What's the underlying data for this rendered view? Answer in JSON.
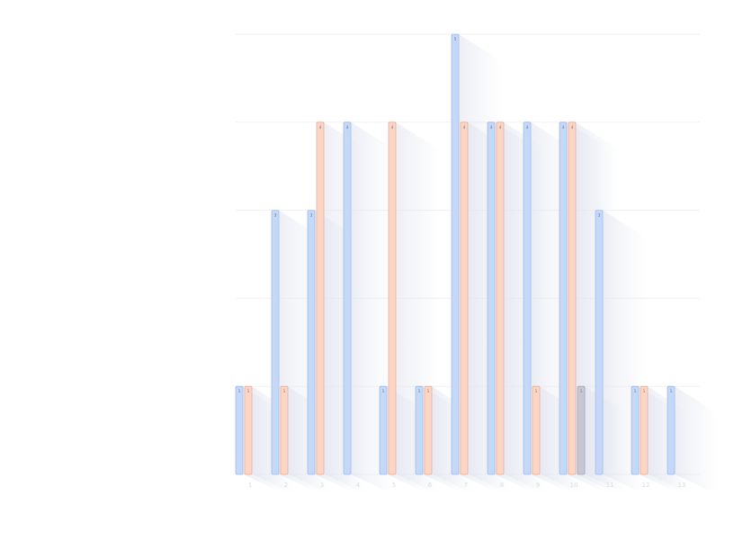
{
  "chart_data": {
    "type": "bar",
    "title": "",
    "xlabel": "",
    "ylabel": "",
    "ylim": [
      0,
      5
    ],
    "grid": true,
    "legend": "none",
    "categories": [
      "1",
      "2",
      "3",
      "4",
      "5",
      "6",
      "7",
      "8",
      "9",
      "10",
      "11",
      "12",
      "13"
    ],
    "series": [
      {
        "values": [
          1,
          3,
          3,
          4,
          1,
          1,
          5,
          4,
          4,
          4,
          3,
          1,
          1
        ],
        "color": "#c5d8f7",
        "stroke": "#9fbcee"
      },
      {
        "values": [
          1,
          1,
          4,
          null,
          4,
          1,
          4,
          4,
          1,
          4,
          null,
          1,
          null
        ],
        "color": "#fbd6c6",
        "stroke": "#f0ad92"
      },
      {
        "values": [
          null,
          null,
          null,
          null,
          null,
          null,
          null,
          null,
          null,
          1,
          null,
          null,
          null
        ],
        "color": "#c7c7d3",
        "stroke": "#a6a6b8"
      }
    ],
    "tick_labels": [
      "1",
      "2",
      "3",
      "4",
      "5",
      "6",
      "7",
      "8",
      "9",
      "10",
      "11",
      "12",
      "13"
    ],
    "colors": {
      "grid": "#f2f2f2",
      "shadow": "#dfe3ee"
    }
  }
}
